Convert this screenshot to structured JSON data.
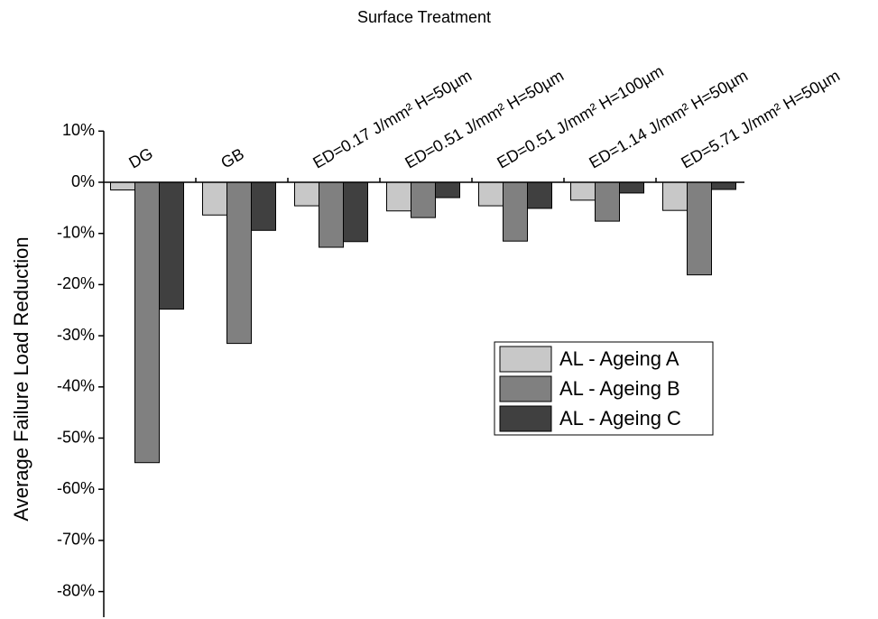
{
  "chart_data": {
    "type": "bar",
    "title": "Surface Treatment",
    "y_label": "Average Failure Load Reduction",
    "categories": [
      "DG",
      "GB",
      "ED=0.17 J/mm² H=50µm",
      "ED=0.51 J/mm² H=50µm",
      "ED=0.51 J/mm² H=100µm",
      "ED=1.14 J/mm² H=50µm",
      "ED=5.71 J/mm² H=50µm"
    ],
    "series": [
      {
        "name": "AL - Ageing A",
        "color": "#c8c8c8",
        "values": [
          -1.5,
          -6.4,
          -4.6,
          -5.6,
          -4.6,
          -3.5,
          -5.5
        ]
      },
      {
        "name": "AL - Ageing B",
        "color": "#808080",
        "values": [
          -54.8,
          -31.5,
          -12.7,
          -6.9,
          -11.5,
          -7.6,
          -18.1
        ]
      },
      {
        "name": "AL - Ageing C",
        "color": "#404040",
        "values": [
          -24.8,
          -9.4,
          -11.6,
          -3.0,
          -5.1,
          -2.1,
          -1.4
        ]
      }
    ],
    "ylim": [
      -85,
      10
    ],
    "yticks": [
      {
        "value": 10,
        "label": "10%"
      },
      {
        "value": 0,
        "label": "0%"
      },
      {
        "value": -10,
        "label": "-10%"
      },
      {
        "value": -20,
        "label": "-20%"
      },
      {
        "value": -30,
        "label": "-30%"
      },
      {
        "value": -40,
        "label": "-40%"
      },
      {
        "value": -50,
        "label": "-50%"
      },
      {
        "value": -60,
        "label": "-60%"
      },
      {
        "value": -70,
        "label": "-70%"
      },
      {
        "value": -80,
        "label": "-80%"
      }
    ],
    "legend": "right",
    "grid": false
  }
}
